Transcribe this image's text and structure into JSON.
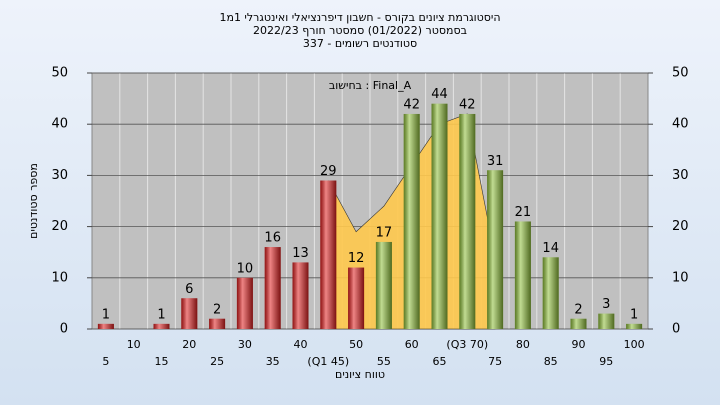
{
  "chart_data": {
    "type": "bar",
    "title": "היסטוגרמת ציונים בקורס - חשבון דיפרנציאלי ואינטגרלי 1מ1",
    "subtitle": "בסמסטר  (01/2022)  סמסטר חורף 2022/23",
    "subtitle2": "סטודנטים רשומים - 337",
    "annotation": "בחישוב : Final_A",
    "y_label": "מספר סטודנטים",
    "x_label": "טווח ציונים",
    "categories": [
      "5",
      "10",
      "15",
      "20",
      "25",
      "30",
      "35",
      "40",
      "(Q1 45)",
      "50",
      "55",
      "60",
      "65",
      "(Q3 70)",
      "75",
      "80",
      "85",
      "90",
      "95",
      "100"
    ],
    "values": [
      1,
      0,
      1,
      6,
      2,
      10,
      16,
      13,
      29,
      12,
      17,
      42,
      44,
      42,
      31,
      21,
      14,
      2,
      3,
      1
    ],
    "colors": [
      "#e02020",
      "#e02020",
      "#e02020",
      "#e02020",
      "#e02020",
      "#e02020",
      "#e02020",
      "#e02020",
      "#e02020",
      "#e02020",
      "#8fbf3a",
      "#8fbf3a",
      "#8fbf3a",
      "#8fbf3a",
      "#8fbf3a",
      "#8fbf3a",
      "#8fbf3a",
      "#8fbf3a",
      "#8fbf3a",
      "#8fbf3a"
    ],
    "area": {
      "color": "#ffc94d",
      "values": [
        null,
        null,
        null,
        null,
        null,
        null,
        null,
        null,
        29,
        19,
        24,
        32,
        40,
        42,
        14,
        null,
        null,
        null,
        null,
        null
      ]
    },
    "ylim": [
      0,
      50
    ],
    "yticks": [
      0,
      10,
      20,
      30,
      40,
      50
    ],
    "y2lim": [
      0,
      50
    ],
    "y2ticks": [
      0,
      10,
      20,
      30,
      40,
      50
    ],
    "grid": true
  }
}
